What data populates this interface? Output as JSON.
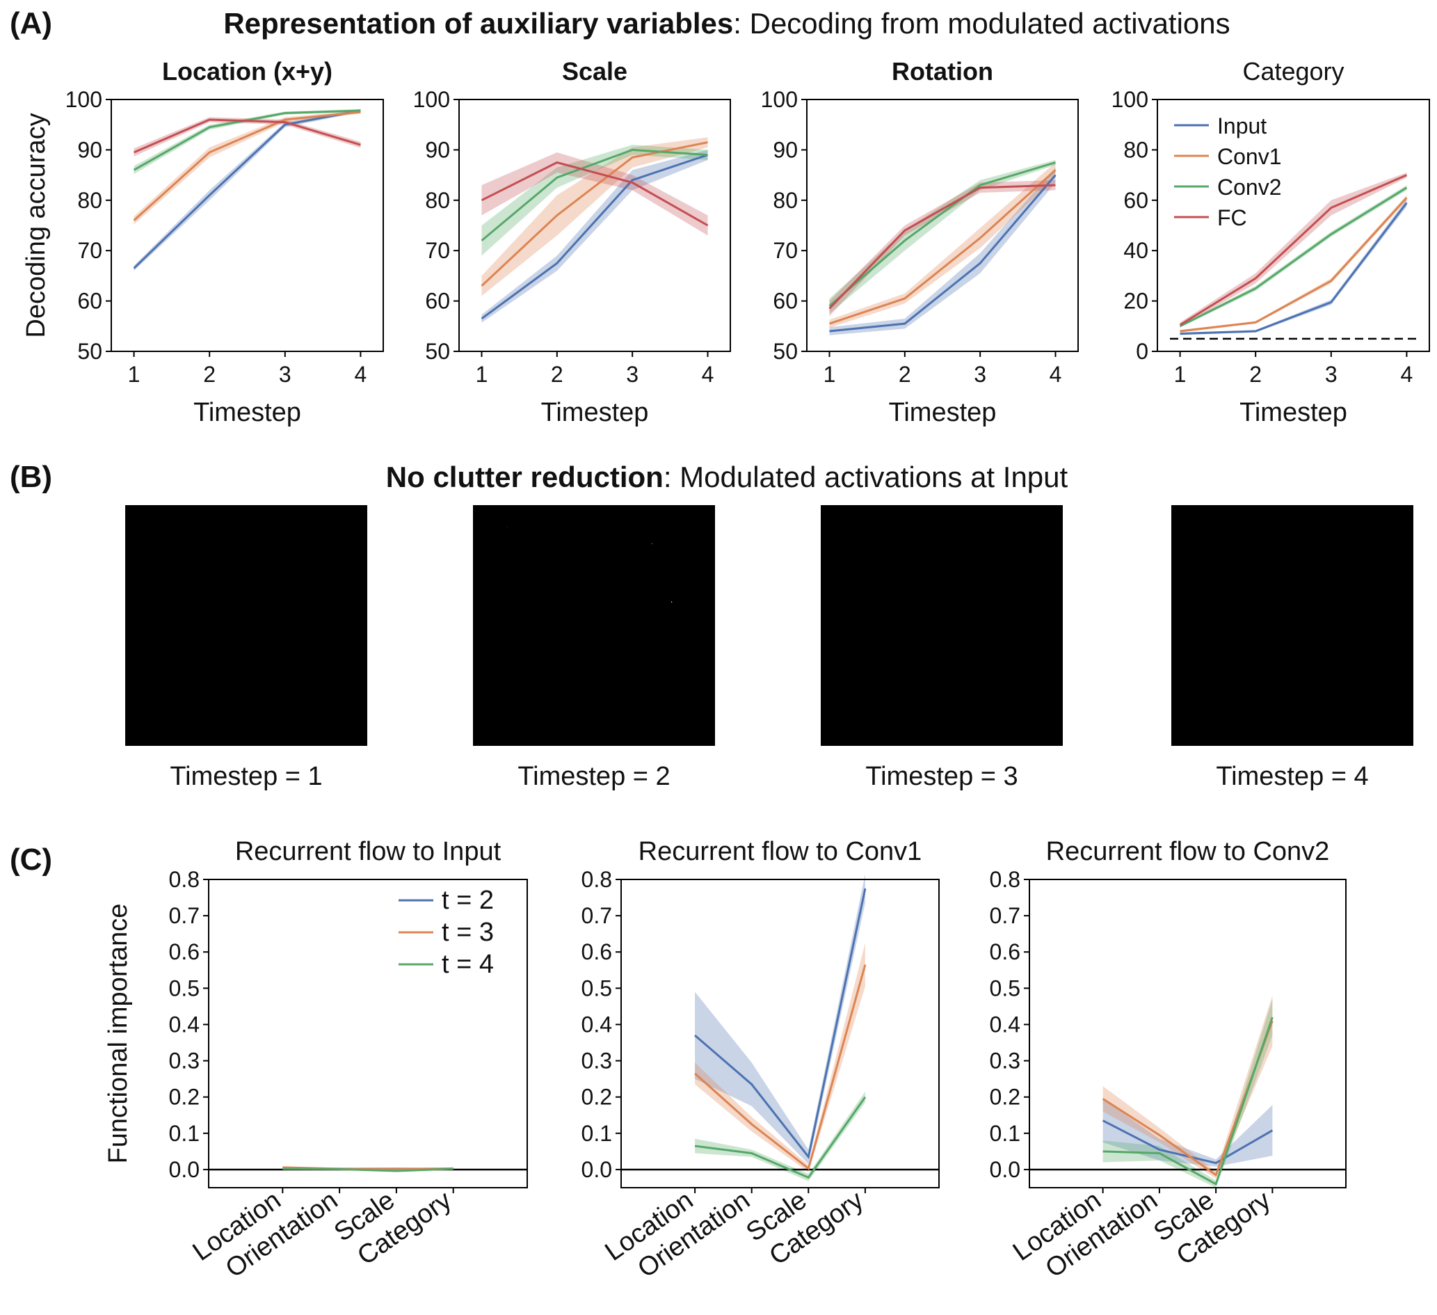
{
  "colors": {
    "Input": "#4c72b0",
    "Conv1": "#dd8452",
    "Conv2": "#55a868",
    "FC": "#c44e52",
    "t2": "#4c72b0",
    "t3": "#dd8452",
    "t4": "#55a868"
  },
  "panelA": {
    "label": "(A)",
    "title_bold": "Representation of auxiliary variables",
    "title_rest": ": Decoding from modulated activations"
  },
  "panelB": {
    "label": "(B)",
    "title_bold": "No clutter reduction",
    "title_rest": ": Modulated activations at Input",
    "captions": [
      "Timestep = 1",
      "Timestep = 2",
      "Timestep = 3",
      "Timestep = 4"
    ]
  },
  "panelC": {
    "label": "(C)"
  },
  "chart_data": [
    {
      "type": "line",
      "title": "Location (x+y)",
      "title_bold": true,
      "xlabel": "Timestep",
      "ylabel": "Decoding accuracy",
      "x": [
        1,
        2,
        3,
        4
      ],
      "xticks": [
        "1",
        "2",
        "3",
        "4"
      ],
      "ylim": [
        50,
        100
      ],
      "yticks": [
        50,
        60,
        70,
        80,
        90,
        100
      ],
      "legend": "none",
      "series": [
        {
          "name": "Input",
          "values": [
            66.5,
            81,
            95,
            97.8
          ],
          "err": [
            0.5,
            1,
            0.5,
            0.3
          ]
        },
        {
          "name": "Conv1",
          "values": [
            76,
            89.5,
            96,
            97.5
          ],
          "err": [
            0.8,
            1,
            0.5,
            0.3
          ]
        },
        {
          "name": "Conv2",
          "values": [
            86,
            94.5,
            97.3,
            97.8
          ],
          "err": [
            0.8,
            0.5,
            0.3,
            0.3
          ]
        },
        {
          "name": "FC",
          "values": [
            89.5,
            96,
            95.5,
            91
          ],
          "err": [
            0.8,
            0.5,
            0.5,
            0.6
          ]
        }
      ]
    },
    {
      "type": "line",
      "title": "Scale",
      "title_bold": true,
      "xlabel": "Timestep",
      "ylabel": "",
      "x": [
        1,
        2,
        3,
        4
      ],
      "xticks": [
        "1",
        "2",
        "3",
        "4"
      ],
      "ylim": [
        50,
        100
      ],
      "yticks": [
        50,
        60,
        70,
        80,
        90,
        100
      ],
      "legend": "none",
      "series": [
        {
          "name": "Input",
          "values": [
            56.5,
            67.5,
            84,
            89
          ],
          "err": [
            0.8,
            1.5,
            2,
            1
          ]
        },
        {
          "name": "Conv1",
          "values": [
            63,
            77,
            88.5,
            91.5
          ],
          "err": [
            2,
            4,
            2,
            1
          ]
        },
        {
          "name": "Conv2",
          "values": [
            72,
            84.5,
            90,
            89
          ],
          "err": [
            3,
            2,
            1,
            1
          ]
        },
        {
          "name": "FC",
          "values": [
            80,
            87.5,
            83.5,
            75
          ],
          "err": [
            3,
            2,
            1.5,
            2
          ]
        }
      ]
    },
    {
      "type": "line",
      "title": "Rotation",
      "title_bold": true,
      "xlabel": "Timestep",
      "ylabel": "",
      "x": [
        1,
        2,
        3,
        4
      ],
      "xticks": [
        "1",
        "2",
        "3",
        "4"
      ],
      "ylim": [
        50,
        100
      ],
      "yticks": [
        50,
        60,
        70,
        80,
        90,
        100
      ],
      "legend": "none",
      "series": [
        {
          "name": "Input",
          "values": [
            54,
            55.5,
            67.5,
            85
          ],
          "err": [
            0.8,
            1,
            2,
            1.5
          ]
        },
        {
          "name": "Conv1",
          "values": [
            55.5,
            60.5,
            72.5,
            86
          ],
          "err": [
            0.8,
            1,
            2,
            1.5
          ]
        },
        {
          "name": "Conv2",
          "values": [
            59,
            72,
            83,
            87.5
          ],
          "err": [
            1.5,
            2,
            1,
            0.5
          ]
        },
        {
          "name": "FC",
          "values": [
            58.5,
            74,
            82.5,
            83
          ],
          "err": [
            1.5,
            1,
            1,
            1
          ]
        }
      ]
    },
    {
      "type": "line",
      "title": "Category",
      "title_bold": false,
      "xlabel": "Timestep",
      "ylabel": "",
      "x": [
        1,
        2,
        3,
        4
      ],
      "xticks": [
        "1",
        "2",
        "3",
        "4"
      ],
      "ylim": [
        0,
        100
      ],
      "yticks": [
        0,
        20,
        40,
        60,
        80,
        100
      ],
      "legend": "top-left",
      "chance_level": 5,
      "series": [
        {
          "name": "Input",
          "values": [
            7,
            8,
            19.5,
            59
          ],
          "err": [
            0.5,
            0.5,
            1,
            1.5
          ]
        },
        {
          "name": "Conv1",
          "values": [
            8,
            11.5,
            28,
            61
          ],
          "err": [
            0.5,
            0.5,
            1,
            1
          ]
        },
        {
          "name": "Conv2",
          "values": [
            10,
            25,
            46.5,
            65
          ],
          "err": [
            0.5,
            1,
            1,
            1
          ]
        },
        {
          "name": "FC",
          "values": [
            10.5,
            29,
            57,
            70
          ],
          "err": [
            1,
            2,
            3,
            1
          ]
        }
      ]
    },
    {
      "type": "line",
      "title": "Recurrent flow to Input",
      "xlabel": "",
      "ylabel": "Functional importance",
      "categories": [
        "Location",
        "Orientation",
        "Scale",
        "Category"
      ],
      "ylim": [
        -0.05,
        0.8
      ],
      "yticks": [
        0.0,
        0.1,
        0.2,
        0.3,
        0.4,
        0.5,
        0.6,
        0.7,
        0.8
      ],
      "legend": "top-right",
      "zero_line": true,
      "series": [
        {
          "name": "t = 2",
          "values": [
            0.003,
            0.002,
            0.002,
            0.002
          ],
          "err": [
            0.002,
            0.002,
            0.002,
            0.002
          ]
        },
        {
          "name": "t = 3",
          "values": [
            0.006,
            0.002,
            0.001,
            0.003
          ],
          "err": [
            0.002,
            0.002,
            0.002,
            0.002
          ]
        },
        {
          "name": "t = 4",
          "values": [
            0.002,
            0.001,
            -0.004,
            0.002
          ],
          "err": [
            0.002,
            0.002,
            0.002,
            0.002
          ]
        }
      ]
    },
    {
      "type": "line",
      "title": "Recurrent flow to Conv1",
      "xlabel": "",
      "ylabel": "",
      "categories": [
        "Location",
        "Orientation",
        "Scale",
        "Category"
      ],
      "ylim": [
        -0.05,
        0.8
      ],
      "yticks": [
        0.0,
        0.1,
        0.2,
        0.3,
        0.4,
        0.5,
        0.6,
        0.7,
        0.8
      ],
      "legend": "none",
      "zero_line": true,
      "series": [
        {
          "name": "t = 2",
          "values": [
            0.37,
            0.235,
            0.035,
            0.775
          ],
          "err": [
            0.12,
            0.06,
            0.02,
            0.04
          ]
        },
        {
          "name": "t = 3",
          "values": [
            0.265,
            0.125,
            0.003,
            0.565
          ],
          "err": [
            0.03,
            0.02,
            0.01,
            0.06
          ]
        },
        {
          "name": "t = 4",
          "values": [
            0.065,
            0.045,
            -0.022,
            0.2
          ],
          "err": [
            0.02,
            0.01,
            0.01,
            0.015
          ]
        }
      ]
    },
    {
      "type": "line",
      "title": "Recurrent flow to Conv2",
      "xlabel": "",
      "ylabel": "",
      "categories": [
        "Location",
        "Orientation",
        "Scale",
        "Category"
      ],
      "ylim": [
        -0.05,
        0.8
      ],
      "yticks": [
        0.0,
        0.1,
        0.2,
        0.3,
        0.4,
        0.5,
        0.6,
        0.7,
        0.8
      ],
      "legend": "none",
      "zero_line": true,
      "series": [
        {
          "name": "t = 2",
          "values": [
            0.135,
            0.055,
            0.018,
            0.108
          ],
          "err": [
            0.06,
            0.03,
            0.01,
            0.07
          ]
        },
        {
          "name": "t = 3",
          "values": [
            0.195,
            0.095,
            -0.015,
            0.41
          ],
          "err": [
            0.035,
            0.02,
            0.01,
            0.07
          ]
        },
        {
          "name": "t = 4",
          "values": [
            0.05,
            0.045,
            -0.04,
            0.42
          ],
          "err": [
            0.03,
            0.02,
            0.01,
            0.05
          ]
        }
      ]
    }
  ]
}
